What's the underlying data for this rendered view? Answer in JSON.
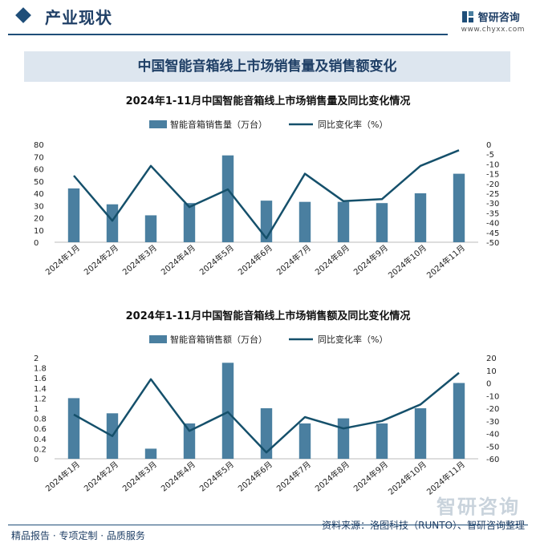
{
  "header": {
    "section_title": "产业现状",
    "brand_name": "智研咨询",
    "brand_url": "www.chyxx.com"
  },
  "banner_title": "中国智能音箱线上市场销售量及销售额变化",
  "chart_data": [
    {
      "type": "bar",
      "title": "2024年1-11月中国智能音箱线上市场销售量及同比变化情况",
      "categories": [
        "2024年1月",
        "2024年2月",
        "2024年3月",
        "2024年4月",
        "2024年5月",
        "2024年6月",
        "2024年7月",
        "2024年8月",
        "2024年9月",
        "2024年10月",
        "2024年11月"
      ],
      "series": [
        {
          "name": "智能音箱销售量（万台）",
          "type": "bar",
          "axis": "left",
          "values": [
            44,
            31,
            22,
            32,
            71,
            34,
            33,
            33,
            32,
            40,
            56
          ]
        },
        {
          "name": "同比变化率（%）",
          "type": "line",
          "axis": "right",
          "values": [
            -16,
            -39,
            -11,
            -32,
            -23,
            -48,
            -15,
            -29,
            -28,
            -11,
            -3
          ]
        }
      ],
      "ylim_left": [
        0,
        80
      ],
      "yticks_left": [
        0,
        10,
        20,
        30,
        40,
        50,
        60,
        70,
        80
      ],
      "ylim_right": [
        -50,
        0
      ],
      "yticks_right": [
        0,
        -5,
        -10,
        -15,
        -20,
        -25,
        -30,
        -35,
        -40,
        -45,
        -50
      ],
      "legend": "top-center",
      "colors": {
        "bar": "#4a7fa0",
        "line": "#15506b"
      }
    },
    {
      "type": "bar",
      "title": "2024年1-11月中国智能音箱线上市场销售额及同比变化情况",
      "categories": [
        "2024年1月",
        "2024年2月",
        "2024年3月",
        "2024年4月",
        "2024年5月",
        "2024年6月",
        "2024年7月",
        "2024年8月",
        "2024年9月",
        "2024年10月",
        "2024年11月"
      ],
      "series": [
        {
          "name": "智能音箱销售额（万台）",
          "type": "bar",
          "axis": "left",
          "values": [
            1.2,
            0.9,
            0.2,
            0.7,
            1.9,
            1.0,
            0.7,
            0.8,
            0.7,
            1.0,
            1.5
          ]
        },
        {
          "name": "同比变化率（%）",
          "type": "line",
          "axis": "right",
          "values": [
            -25,
            -42,
            3,
            -38,
            -23,
            -55,
            -27,
            -36,
            -30,
            -17,
            8
          ]
        }
      ],
      "ylim_left": [
        0,
        2
      ],
      "yticks_left": [
        0,
        0.2,
        0.4,
        0.6,
        0.8,
        1,
        1.2,
        1.4,
        1.6,
        1.8,
        2
      ],
      "ylim_right": [
        -60,
        20
      ],
      "yticks_right": [
        20,
        10,
        0,
        -10,
        -20,
        -30,
        -40,
        -50,
        -60
      ],
      "legend": "top-center",
      "colors": {
        "bar": "#4a7fa0",
        "line": "#15506b"
      }
    }
  ],
  "footer": {
    "left": "精品报告 · 专项定制 · 品质服务",
    "right": "资料来源：洛图科技（RUNTO）、智研咨询整理",
    "watermark": "智研咨询"
  }
}
